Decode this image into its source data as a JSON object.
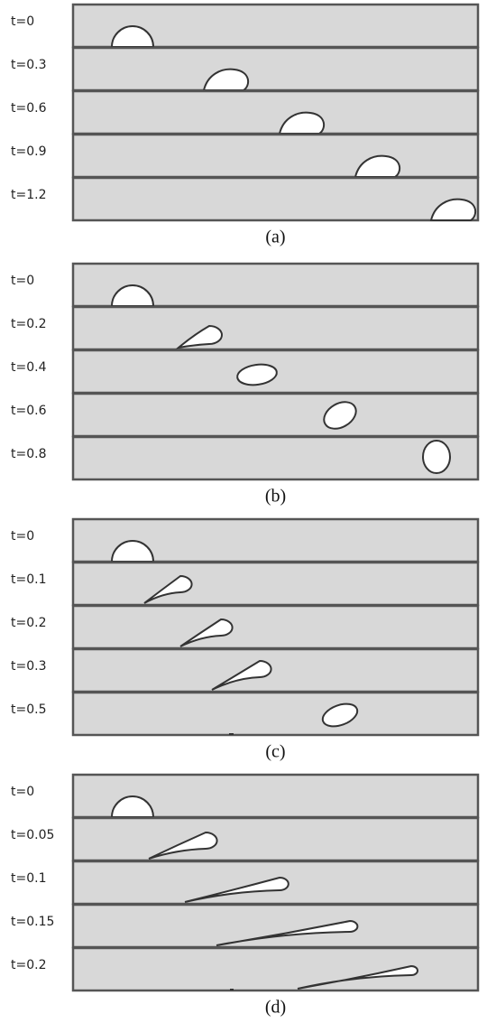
{
  "panels": [
    {
      "caption": "(a)",
      "frames": [
        "t=0",
        "t=0.3",
        "t=0.6",
        "t=0.9",
        "t=1.2"
      ]
    },
    {
      "caption": "(b)",
      "frames": [
        "t=0",
        "t=0.2",
        "t=0.4",
        "t=0.6",
        "t=0.8"
      ]
    },
    {
      "caption": "(c)",
      "frames": [
        "t=0",
        "t=0.1",
        "t=0.2",
        "t=0.3",
        "t=0.5"
      ]
    },
    {
      "caption": "(d)",
      "frames": [
        "t=0",
        "t=0.05",
        "t=0.1",
        "t=0.15",
        "t=0.2"
      ]
    }
  ]
}
